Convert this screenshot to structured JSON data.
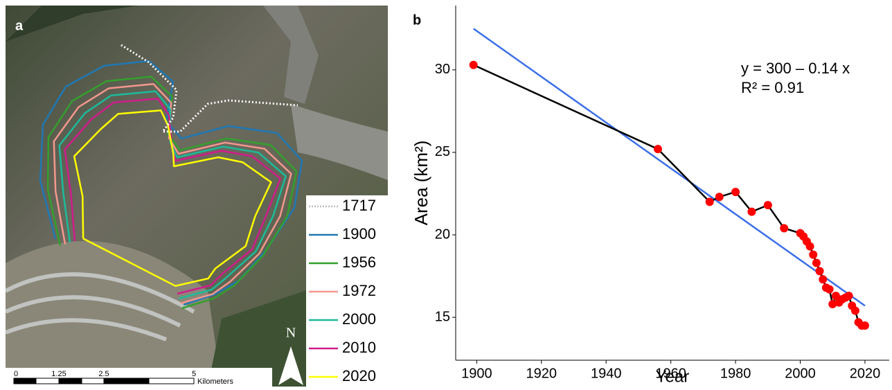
{
  "map": {
    "panel_label": "a",
    "legend": [
      {
        "name": "1717",
        "color": "#bbbbbb"
      },
      {
        "name": "1900",
        "color": "#1f78b4"
      },
      {
        "name": "1956",
        "color": "#33a02c"
      },
      {
        "name": "1972",
        "color": "#f4978e"
      },
      {
        "name": "2000",
        "color": "#1abc9c"
      },
      {
        "name": "2010",
        "color": "#d01c8b"
      },
      {
        "name": "2020",
        "color": "#ffff00"
      }
    ],
    "scale_labels": [
      "0",
      "1.25",
      "2.5",
      "5"
    ],
    "scale_unit": "Kilometers",
    "north": "N"
  },
  "chart_data": {
    "type": "line",
    "panel_label": "b",
    "x_label": "Year",
    "y_label": "Area (km²)",
    "equation": "y = 300 – 0.14 x",
    "r_squared": "R² = 0.91",
    "x": [
      1899,
      1956,
      1972,
      1975,
      1980,
      1985,
      1990,
      1995,
      2000,
      2001,
      2002,
      2003,
      2004,
      2005,
      2006,
      2007,
      2008,
      2009,
      2010,
      2011,
      2012,
      2013,
      2014,
      2015,
      2016,
      2017,
      2018,
      2019,
      2020
    ],
    "values": [
      30.3,
      25.2,
      22.0,
      22.3,
      22.6,
      21.4,
      21.8,
      20.4,
      20.1,
      19.9,
      19.6,
      19.3,
      18.8,
      18.3,
      17.8,
      17.3,
      16.8,
      16.7,
      15.8,
      16.3,
      15.9,
      16.1,
      16.2,
      16.3,
      15.7,
      15.4,
      14.7,
      14.5,
      14.5
    ],
    "line_color": "#000000",
    "marker_color": "#ff0000",
    "fit": {
      "x": [
        1899,
        2020
      ],
      "values": [
        32.5,
        15.7
      ],
      "color": "#3a6ee8"
    },
    "xlim": [
      1893.5,
      2027.5
    ],
    "ylim": [
      12.4,
      33.9
    ],
    "xticks": [
      1900,
      1920,
      1940,
      1960,
      1980,
      2000,
      2020
    ],
    "yticks": [
      15,
      20,
      25,
      30
    ]
  }
}
